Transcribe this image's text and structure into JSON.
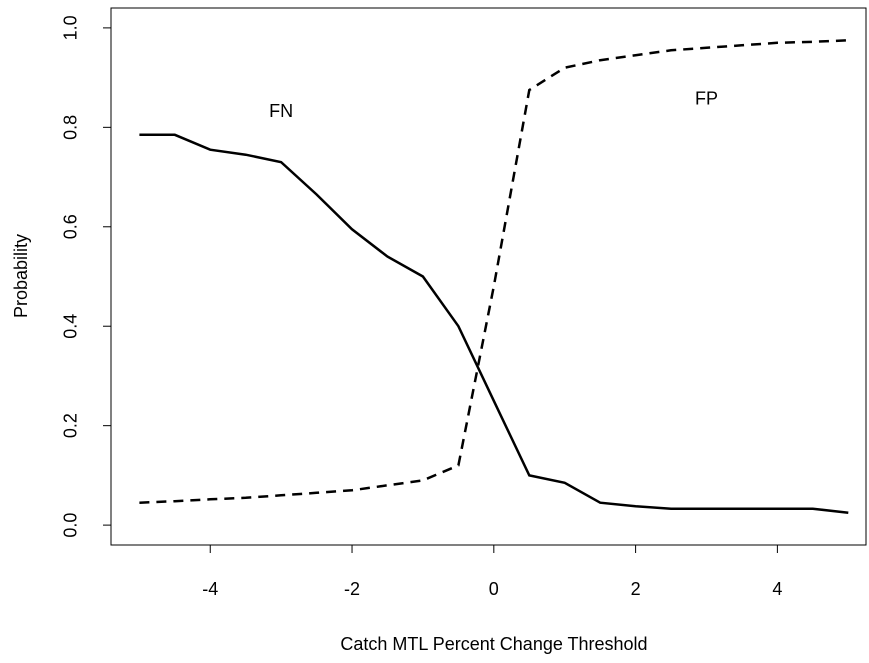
{
  "chart_data": {
    "type": "line",
    "x_label": "Catch MTL Percent Change Threshold",
    "y_label": "Probability",
    "x": [
      -5,
      -4.5,
      -4,
      -3.5,
      -3,
      -2.5,
      -2,
      -1.5,
      -1,
      -0.5,
      0,
      0.5,
      1,
      1.5,
      2,
      2.5,
      3,
      3.5,
      4,
      4.5,
      5
    ],
    "series": [
      {
        "color": "#000000",
        "dash": "solid",
        "values": [
          0.785,
          0.785,
          0.755,
          0.745,
          0.73,
          0.665,
          0.595,
          0.54,
          0.5,
          0.4,
          0.25,
          0.1,
          0.085,
          0.045,
          0.038,
          0.033,
          0.033,
          0.033,
          0.033,
          0.033,
          0.025
        ]
      },
      {
        "color": "#000000",
        "dash": "dashed",
        "values": [
          0.045,
          0.048,
          0.052,
          0.055,
          0.06,
          0.065,
          0.07,
          0.08,
          0.09,
          0.12,
          0.48,
          0.875,
          0.92,
          0.935,
          0.945,
          0.955,
          0.96,
          0.965,
          0.97,
          0.972,
          0.975
        ]
      }
    ],
    "annotations": [
      {
        "text": "FN",
        "x": -3,
        "y": 0.83
      },
      {
        "text": "FP",
        "x": 3,
        "y": 0.855
      }
    ],
    "xlim": [
      -5.4,
      5.25
    ],
    "ylim": [
      -0.04,
      1.04
    ],
    "xticks": [
      -4,
      -2,
      0,
      2,
      4
    ],
    "yticks": [
      {
        "value": 0,
        "label": "0.0"
      },
      0.2,
      0.4,
      0.6,
      0.8,
      {
        "value": 1,
        "label": "1.0"
      }
    ]
  }
}
